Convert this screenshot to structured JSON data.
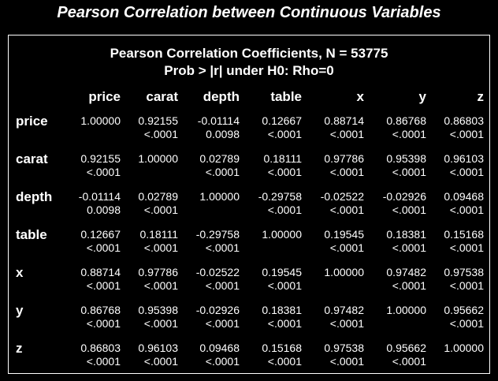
{
  "title": "Pearson Correlation between Continuous Variables",
  "caption": {
    "line1": "Pearson Correlation Coefficients, N = 53775",
    "line2": "Prob > |r| under H0: Rho=0"
  },
  "variables": [
    "price",
    "carat",
    "depth",
    "table",
    "x",
    "y",
    "z"
  ],
  "rows": [
    {
      "label": "price",
      "cells": [
        {
          "r": "1.00000",
          "p": ""
        },
        {
          "r": "0.92155",
          "p": "<.0001"
        },
        {
          "r": "-0.01114",
          "p": "0.0098"
        },
        {
          "r": "0.12667",
          "p": "<.0001"
        },
        {
          "r": "0.88714",
          "p": "<.0001"
        },
        {
          "r": "0.86768",
          "p": "<.0001"
        },
        {
          "r": "0.86803",
          "p": "<.0001"
        }
      ]
    },
    {
      "label": "carat",
      "cells": [
        {
          "r": "0.92155",
          "p": "<.0001"
        },
        {
          "r": "1.00000",
          "p": ""
        },
        {
          "r": "0.02789",
          "p": "<.0001"
        },
        {
          "r": "0.18111",
          "p": "<.0001"
        },
        {
          "r": "0.97786",
          "p": "<.0001"
        },
        {
          "r": "0.95398",
          "p": "<.0001"
        },
        {
          "r": "0.96103",
          "p": "<.0001"
        }
      ]
    },
    {
      "label": "depth",
      "cells": [
        {
          "r": "-0.01114",
          "p": "0.0098"
        },
        {
          "r": "0.02789",
          "p": "<.0001"
        },
        {
          "r": "1.00000",
          "p": ""
        },
        {
          "r": "-0.29758",
          "p": "<.0001"
        },
        {
          "r": "-0.02522",
          "p": "<.0001"
        },
        {
          "r": "-0.02926",
          "p": "<.0001"
        },
        {
          "r": "0.09468",
          "p": "<.0001"
        }
      ]
    },
    {
      "label": "table",
      "cells": [
        {
          "r": "0.12667",
          "p": "<.0001"
        },
        {
          "r": "0.18111",
          "p": "<.0001"
        },
        {
          "r": "-0.29758",
          "p": "<.0001"
        },
        {
          "r": "1.00000",
          "p": ""
        },
        {
          "r": "0.19545",
          "p": "<.0001"
        },
        {
          "r": "0.18381",
          "p": "<.0001"
        },
        {
          "r": "0.15168",
          "p": "<.0001"
        }
      ]
    },
    {
      "label": "x",
      "cells": [
        {
          "r": "0.88714",
          "p": "<.0001"
        },
        {
          "r": "0.97786",
          "p": "<.0001"
        },
        {
          "r": "-0.02522",
          "p": "<.0001"
        },
        {
          "r": "0.19545",
          "p": "<.0001"
        },
        {
          "r": "1.00000",
          "p": ""
        },
        {
          "r": "0.97482",
          "p": "<.0001"
        },
        {
          "r": "0.97538",
          "p": "<.0001"
        }
      ]
    },
    {
      "label": "y",
      "cells": [
        {
          "r": "0.86768",
          "p": "<.0001"
        },
        {
          "r": "0.95398",
          "p": "<.0001"
        },
        {
          "r": "-0.02926",
          "p": "<.0001"
        },
        {
          "r": "0.18381",
          "p": "<.0001"
        },
        {
          "r": "0.97482",
          "p": "<.0001"
        },
        {
          "r": "1.00000",
          "p": ""
        },
        {
          "r": "0.95662",
          "p": "<.0001"
        }
      ]
    },
    {
      "label": "z",
      "cells": [
        {
          "r": "0.86803",
          "p": "<.0001"
        },
        {
          "r": "0.96103",
          "p": "<.0001"
        },
        {
          "r": "0.09468",
          "p": "<.0001"
        },
        {
          "r": "0.15168",
          "p": "<.0001"
        },
        {
          "r": "0.97538",
          "p": "<.0001"
        },
        {
          "r": "0.95662",
          "p": "<.0001"
        },
        {
          "r": "1.00000",
          "p": ""
        }
      ]
    }
  ]
}
